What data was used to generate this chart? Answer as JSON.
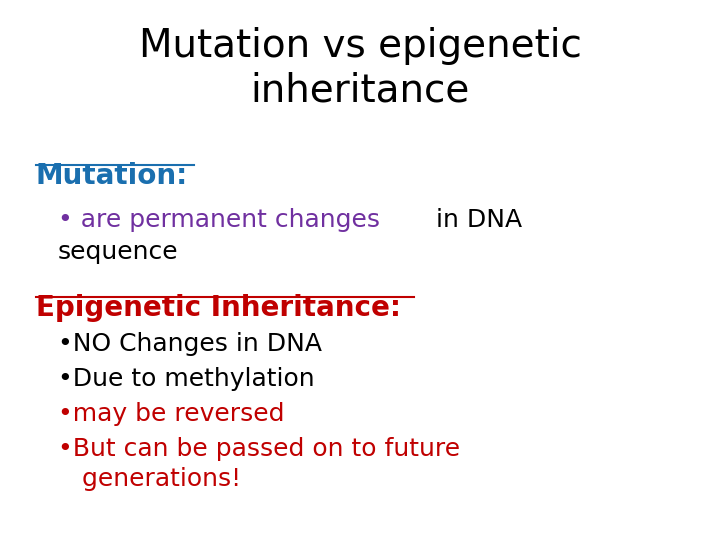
{
  "title_line1": "Mutation vs epigenetic",
  "title_line2": "inheritance",
  "title_color": "#000000",
  "title_fontsize": 28,
  "background_color": "#ffffff",
  "section1_heading": "Mutation:",
  "section1_heading_color": "#1a6faf",
  "section2_heading": "Epigenetic Inheritance:",
  "section2_heading_color": "#c00000",
  "bullet_fontsize": 18,
  "heading_fontsize": 20,
  "section2_bullets": [
    {
      "text": "•NO Changes in DNA",
      "color": "#000000"
    },
    {
      "text": "•Due to methylation",
      "color": "#000000"
    },
    {
      "text": "•may be reversed",
      "color": "#c00000"
    },
    {
      "text": "•But can be passed on to future\n   generations!",
      "color": "#c00000"
    }
  ],
  "purple_color": "#7030a0",
  "black_color": "#000000"
}
